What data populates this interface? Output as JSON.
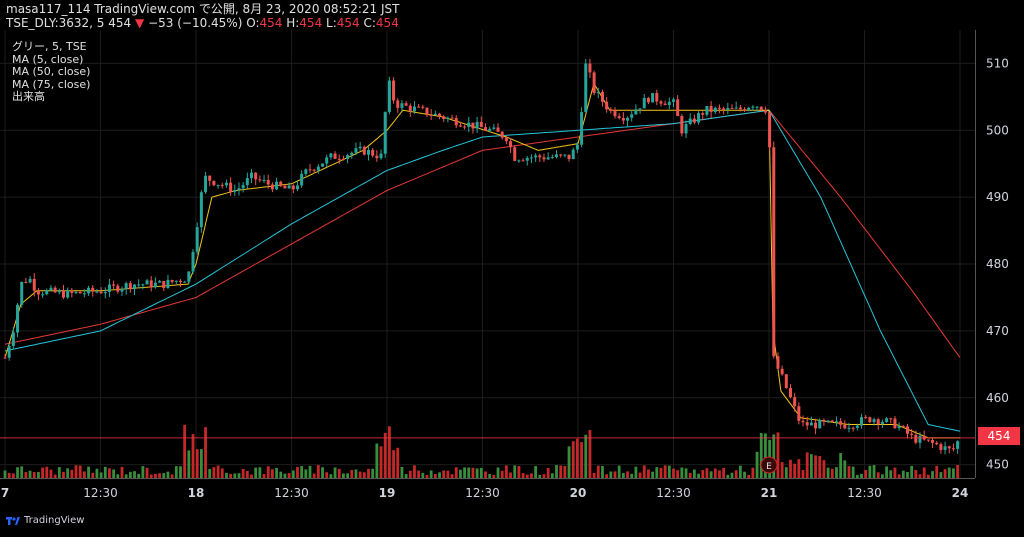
{
  "header": {
    "line1": "masa117_114 TradingView.com で公開, 8月 23, 2020 08:52:21 JST",
    "symbol": "TSE_DLY:3632, 5 454",
    "change_arrow": "▼",
    "change": "−53 (−10.45%)",
    "o_label": "O:",
    "o": "454",
    "h_label": "H:",
    "h": "454",
    "l_label": "L:",
    "l": "454",
    "c_label": "C:",
    "c": "454"
  },
  "legend": {
    "series_title": "グリー, 5, TSE",
    "ma5": "MA (5, close)",
    "ma50": "MA (50, close)",
    "ma75": "MA (75, close)",
    "volume": "出来高"
  },
  "current_price_tag": "454",
  "earnings_marker": "E",
  "footer": {
    "brand": "TradingView"
  },
  "colors": {
    "up": "#26a69a",
    "down": "#ef5350",
    "ma5": "#f5c518",
    "ma50": "#26c6da",
    "ma75": "#e53935",
    "vol_up": "#388e3c",
    "vol_down": "#c62828",
    "price_line": "#f23645"
  },
  "chart_data": {
    "type": "candlestick",
    "y_ticks": [
      "510",
      "500",
      "490",
      "480",
      "470",
      "460",
      "450"
    ],
    "ylim": [
      448,
      515
    ],
    "x_ticks": [
      "7",
      "12:30",
      "18",
      "12:30",
      "19",
      "12:30",
      "20",
      "12:30",
      "21",
      "12:30",
      "24"
    ],
    "x_tick_positions": [
      0,
      24,
      48,
      72,
      96,
      120,
      144,
      168,
      192,
      216,
      240
    ],
    "x_range": [
      0,
      240
    ],
    "grid": true,
    "last_price": 454,
    "earnings_at": 192,
    "close_anchors": [
      [
        0,
        466
      ],
      [
        2,
        470
      ],
      [
        4,
        477
      ],
      [
        6,
        478
      ],
      [
        8,
        476
      ],
      [
        16,
        475.5
      ],
      [
        24,
        476
      ],
      [
        32,
        477
      ],
      [
        40,
        477
      ],
      [
        46,
        478
      ],
      [
        48,
        485
      ],
      [
        50,
        493
      ],
      [
        54,
        492
      ],
      [
        58,
        491
      ],
      [
        62,
        493
      ],
      [
        66,
        492
      ],
      [
        72,
        491
      ],
      [
        76,
        494
      ],
      [
        82,
        496
      ],
      [
        90,
        497
      ],
      [
        95,
        496
      ],
      [
        96,
        508
      ],
      [
        98,
        504
      ],
      [
        104,
        503
      ],
      [
        110,
        502
      ],
      [
        116,
        501
      ],
      [
        122,
        500
      ],
      [
        126,
        499
      ],
      [
        128,
        496
      ],
      [
        136,
        496
      ],
      [
        142,
        496
      ],
      [
        144,
        498
      ],
      [
        146,
        510
      ],
      [
        148,
        506
      ],
      [
        152,
        503
      ],
      [
        156,
        502
      ],
      [
        162,
        505
      ],
      [
        168,
        504
      ],
      [
        170,
        500
      ],
      [
        176,
        503
      ],
      [
        184,
        503
      ],
      [
        188,
        504
      ],
      [
        192,
        503
      ],
      [
        193,
        466
      ],
      [
        196,
        462
      ],
      [
        200,
        456
      ],
      [
        206,
        456
      ],
      [
        212,
        456
      ],
      [
        218,
        457
      ],
      [
        224,
        456
      ],
      [
        228,
        454
      ],
      [
        234,
        453
      ],
      [
        238,
        452
      ],
      [
        240,
        454
      ]
    ],
    "ma5_anchors": [
      [
        0,
        466
      ],
      [
        4,
        474
      ],
      [
        8,
        476
      ],
      [
        24,
        476
      ],
      [
        46,
        477
      ],
      [
        48,
        480
      ],
      [
        52,
        490
      ],
      [
        58,
        491
      ],
      [
        72,
        492
      ],
      [
        90,
        497
      ],
      [
        96,
        500
      ],
      [
        100,
        503
      ],
      [
        110,
        502
      ],
      [
        126,
        499
      ],
      [
        134,
        497
      ],
      [
        144,
        498
      ],
      [
        148,
        507
      ],
      [
        152,
        503
      ],
      [
        160,
        503
      ],
      [
        168,
        503
      ],
      [
        184,
        503
      ],
      [
        192,
        503
      ],
      [
        193,
        470
      ],
      [
        195,
        461
      ],
      [
        200,
        457
      ],
      [
        212,
        456
      ],
      [
        224,
        456
      ],
      [
        232,
        454
      ],
      [
        240,
        454
      ]
    ],
    "ma50_anchors": [
      [
        0,
        467
      ],
      [
        24,
        470
      ],
      [
        48,
        477
      ],
      [
        72,
        486
      ],
      [
        96,
        494
      ],
      [
        110,
        497
      ],
      [
        120,
        499
      ],
      [
        144,
        500
      ],
      [
        168,
        501
      ],
      [
        192,
        503
      ],
      [
        205,
        490
      ],
      [
        220,
        470
      ],
      [
        232,
        456
      ],
      [
        240,
        455
      ]
    ],
    "ma75_anchors": [
      [
        0,
        468
      ],
      [
        24,
        471
      ],
      [
        48,
        475
      ],
      [
        72,
        483
      ],
      [
        96,
        491
      ],
      [
        120,
        497
      ],
      [
        144,
        499
      ],
      [
        168,
        501
      ],
      [
        192,
        503
      ],
      [
        210,
        490
      ],
      [
        228,
        476
      ],
      [
        240,
        466
      ]
    ]
  }
}
